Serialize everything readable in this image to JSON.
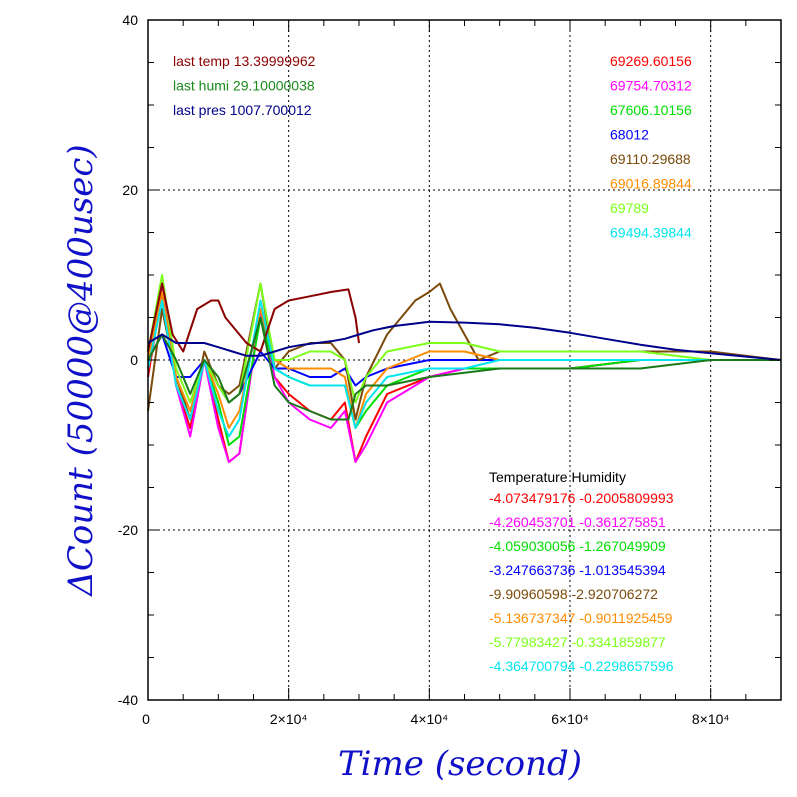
{
  "chart_data": {
    "type": "line",
    "xlabel": "Time (second)",
    "ylabel": "ΔCount (50000@400usec)",
    "xlim": [
      0,
      90000
    ],
    "ylim": [
      -40,
      40
    ],
    "grid": true,
    "x_ticks": [
      {
        "value": 0,
        "label": "0"
      },
      {
        "value": 20000,
        "label": "2×10⁴"
      },
      {
        "value": 40000,
        "label": "4×10⁴"
      },
      {
        "value": 60000,
        "label": "6×10⁴"
      },
      {
        "value": 80000,
        "label": "8×10⁴"
      }
    ],
    "y_ticks": [
      {
        "value": 40,
        "label": "40"
      },
      {
        "value": 20,
        "label": "20"
      },
      {
        "value": 0,
        "label": "0"
      },
      {
        "value": -20,
        "label": "-20"
      },
      {
        "value": -40,
        "label": "-40"
      }
    ],
    "environment": [
      {
        "label": "last temp",
        "value": "13.39999962",
        "color": "#8b0000"
      },
      {
        "label": "last humi",
        "value": "29.10000038",
        "color": "#1a8a1a"
      },
      {
        "label": "last pres",
        "value": "1007.700012",
        "color": "#00008b"
      }
    ],
    "count_labels": [
      {
        "value": "69269.60156",
        "color": "#ff0000"
      },
      {
        "value": "69754.70312",
        "color": "#ff00ff"
      },
      {
        "value": "67606.10156",
        "color": "#00dd00"
      },
      {
        "value": "68012",
        "color": "#0000ff"
      },
      {
        "value": "69110.29688",
        "color": "#7a4a0a"
      },
      {
        "value": "69016.89844",
        "color": "#ff8c00"
      },
      {
        "value": "69789",
        "color": "#7cff1a"
      },
      {
        "value": "69494.39844",
        "color": "#00e5ee"
      }
    ],
    "coef_header": "Temperature    Humidity",
    "coefficients": [
      {
        "temperature": "-4.073479176",
        "humidity": "-0.2005809993",
        "color": "#ff0000"
      },
      {
        "temperature": "-4.260453701",
        "humidity": "-0.361275851",
        "color": "#ff00ff"
      },
      {
        "temperature": "-4.059030056",
        "humidity": "-1.267049909",
        "color": "#00dd00"
      },
      {
        "temperature": "-3.247663736",
        "humidity": "-1.013545394",
        "color": "#0000ff"
      },
      {
        "temperature": "-9.90960598",
        "humidity": "-2.920706272",
        "color": "#7a4a0a"
      },
      {
        "temperature": "-5.136737347",
        "humidity": "-0.9011925459",
        "color": "#ff8c00"
      },
      {
        "temperature": "-5.77983427",
        "humidity": "-0.3341859877",
        "color": "#7cff1a"
      },
      {
        "temperature": "-4.364700794",
        "humidity": "-0.2298657596",
        "color": "#00e5ee"
      }
    ],
    "series": [
      {
        "color": "#ff0000",
        "x": [
          0,
          2000,
          4000,
          6000,
          8000,
          10000,
          11500,
          13000,
          16000,
          18000,
          20000,
          23000,
          26000,
          28000,
          29500,
          31000,
          34000,
          40000,
          45000,
          50000,
          60000,
          70000,
          80000,
          90000
        ],
        "y": [
          -2,
          8,
          -3,
          -8,
          0,
          -7,
          -12,
          -11,
          6,
          -2,
          -4,
          -6,
          -7,
          -5,
          -12,
          -9,
          -4,
          -2,
          -1,
          -1,
          -1,
          0,
          0,
          0
        ]
      },
      {
        "color": "#ff00ff",
        "x": [
          0,
          2000,
          4000,
          6000,
          8000,
          10000,
          11500,
          13000,
          16000,
          18000,
          20000,
          23000,
          26000,
          28000,
          29500,
          31000,
          34000,
          40000,
          45000,
          50000,
          60000,
          70000,
          80000,
          90000
        ],
        "y": [
          -1,
          9,
          -3,
          -9,
          0,
          -8,
          -12,
          -11,
          6,
          -2,
          -5,
          -7,
          -8,
          -6,
          -12,
          -10,
          -5,
          -2,
          -1,
          -1,
          -1,
          0,
          0,
          0
        ]
      },
      {
        "color": "#00dd00",
        "x": [
          0,
          2000,
          4000,
          6000,
          8000,
          10000,
          11500,
          13000,
          16000,
          18000,
          20000,
          23000,
          26000,
          28000,
          29500,
          31000,
          34000,
          40000,
          45000,
          50000,
          60000,
          70000,
          80000,
          90000
        ],
        "y": [
          0,
          7,
          -2,
          -7,
          0,
          -5,
          -10,
          -9,
          5,
          -1,
          -2,
          -3,
          -3,
          -3,
          -8,
          -6,
          -3,
          -1,
          -1,
          -1,
          -1,
          0,
          0,
          0
        ]
      },
      {
        "color": "#0000ff",
        "x": [
          0,
          2000,
          4000,
          6000,
          8000,
          10000,
          11500,
          13000,
          16000,
          18000,
          20000,
          23000,
          26000,
          28000,
          29500,
          31000,
          34000,
          40000,
          45000,
          50000,
          60000,
          70000,
          80000,
          90000
        ],
        "y": [
          0,
          3,
          -2,
          -2,
          0,
          -3,
          -5,
          -4,
          1,
          -1,
          -1,
          -2,
          -2,
          -1,
          -3,
          -2,
          -1,
          0,
          0,
          0,
          0,
          0,
          0,
          0
        ]
      },
      {
        "color": "#7a4a0a",
        "x": [
          0,
          2000,
          4000,
          6000,
          8000,
          10000,
          11500,
          13000,
          16000,
          18000,
          20000,
          23000,
          26000,
          28000,
          29500,
          31000,
          34000,
          38000,
          40000,
          41500,
          43000,
          45000,
          47000,
          50000,
          55000,
          60000,
          70000,
          80000,
          90000
        ],
        "y": [
          -6,
          6,
          -2,
          -7,
          1,
          -3,
          -4,
          -3,
          9,
          -1,
          1,
          2,
          2,
          0,
          -7,
          -2,
          3,
          7,
          8,
          9,
          6,
          3,
          0,
          1,
          1,
          1,
          1,
          1,
          0
        ]
      },
      {
        "color": "#ff8c00",
        "x": [
          0,
          2000,
          4000,
          6000,
          8000,
          10000,
          11500,
          13000,
          16000,
          18000,
          20000,
          23000,
          26000,
          28000,
          29500,
          31000,
          34000,
          40000,
          45000,
          50000,
          60000,
          70000,
          80000,
          90000
        ],
        "y": [
          0,
          8,
          -2,
          -6,
          0,
          -4,
          -8,
          -6,
          6,
          0,
          -1,
          -1,
          -1,
          -2,
          -8,
          -4,
          -1,
          1,
          1,
          0,
          0,
          0,
          0,
          0
        ]
      },
      {
        "color": "#7cff1a",
        "x": [
          0,
          2000,
          4000,
          6000,
          8000,
          10000,
          11500,
          13000,
          16000,
          18000,
          20000,
          23000,
          26000,
          28000,
          29500,
          31000,
          34000,
          40000,
          45000,
          50000,
          60000,
          70000,
          80000,
          90000
        ],
        "y": [
          1,
          10,
          -1,
          -5,
          0,
          -3,
          -5,
          -4,
          9,
          0,
          0,
          1,
          1,
          0,
          -5,
          -2,
          1,
          2,
          2,
          1,
          1,
          1,
          0,
          0
        ]
      },
      {
        "color": "#00e5ee",
        "x": [
          0,
          2000,
          4000,
          6000,
          8000,
          10000,
          11500,
          13000,
          16000,
          18000,
          20000,
          23000,
          26000,
          28000,
          29500,
          31000,
          34000,
          40000,
          45000,
          50000,
          60000,
          70000,
          80000,
          90000
        ],
        "y": [
          -1,
          7,
          -3,
          -7,
          0,
          -6,
          -9,
          -7,
          7,
          -1,
          -2,
          -3,
          -3,
          -3,
          -8,
          -5,
          -2,
          -1,
          -1,
          0,
          0,
          0,
          0,
          0
        ]
      },
      {
        "color": "#8b0000",
        "x": [
          0,
          2000,
          3500,
          5000,
          7000,
          9000,
          10000,
          11000,
          12000,
          14000,
          16000,
          18000,
          20000,
          23000,
          26000,
          28500,
          29500,
          30000
        ],
        "y": [
          1,
          9,
          3,
          1,
          6,
          7,
          7,
          5,
          4,
          2,
          1,
          6,
          7,
          7.5,
          8,
          8.3,
          5,
          2
        ]
      },
      {
        "color": "#1a7a1a",
        "x": [
          0,
          2000,
          4000,
          6000,
          8000,
          10000,
          11500,
          13000,
          16000,
          18000,
          20000,
          23000,
          26000,
          28500,
          29500,
          31000,
          34000,
          40000,
          50000,
          60000,
          70000,
          80000,
          90000
        ],
        "y": [
          0,
          3,
          0,
          -4,
          0,
          -2,
          -5,
          -4,
          5,
          -3,
          -5,
          -6,
          -7,
          -7,
          -4,
          -3,
          -3,
          -2,
          -1,
          -1,
          -1,
          0,
          0
        ]
      },
      {
        "color": "#00008b",
        "x": [
          0,
          2000,
          4000,
          6000,
          8000,
          10000,
          12000,
          14000,
          16000,
          18000,
          20000,
          22000,
          24000,
          26000,
          28000,
          30000,
          32000,
          35000,
          38000,
          40000,
          45000,
          50000,
          55000,
          60000,
          65000,
          70000,
          75000,
          80000,
          85000,
          90000
        ],
        "y": [
          2,
          3,
          2,
          2,
          2,
          1.5,
          1,
          0.5,
          0.5,
          1,
          1.5,
          1.8,
          2,
          2.2,
          2.5,
          3,
          3.5,
          4,
          4.3,
          4.5,
          4.4,
          4.2,
          3.8,
          3.2,
          2.5,
          1.8,
          1.2,
          0.8,
          0.4,
          0
        ]
      }
    ]
  }
}
